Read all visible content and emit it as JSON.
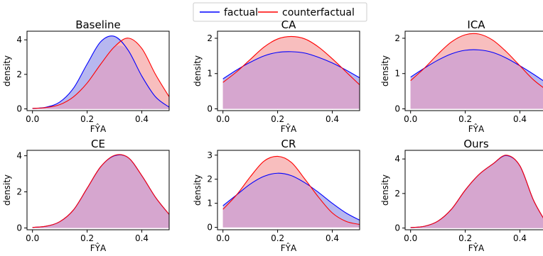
{
  "legend": {
    "items": [
      {
        "label": "factual",
        "color": "#0000ff"
      },
      {
        "label": "counterfactual",
        "color": "#ff0000"
      }
    ]
  },
  "colors": {
    "factual_line": "#0000ff",
    "counterfactual_line": "#ff0000",
    "factual_fill": "#b7b7ef",
    "counterfactual_fill": "#f8bebe",
    "overlap_fill": "#d6a6cf"
  },
  "chart_data": [
    {
      "type": "area",
      "title": "Baseline",
      "xlabel": "FŶA",
      "ylabel": "density",
      "xlim": [
        -0.02,
        0.5
      ],
      "ylim": [
        -0.1,
        4.5
      ],
      "xticks": [
        "0.0",
        "0.2",
        "0.4"
      ],
      "xtick_values": [
        0.0,
        0.2,
        0.4
      ],
      "yticks": [
        "0",
        "2",
        "4"
      ],
      "ytick_values": [
        0,
        2,
        4
      ],
      "x": [
        0.0,
        0.05,
        0.1,
        0.15,
        0.2,
        0.25,
        0.3,
        0.35,
        0.4,
        0.45,
        0.5
      ],
      "series": [
        {
          "name": "factual",
          "values": [
            0.03,
            0.1,
            0.4,
            1.2,
            2.6,
            3.9,
            4.2,
            3.4,
            1.9,
            0.7,
            0.1
          ]
        },
        {
          "name": "counterfactual",
          "values": [
            0.03,
            0.08,
            0.25,
            0.7,
            1.5,
            2.6,
            3.6,
            4.1,
            3.5,
            2.0,
            0.7
          ]
        }
      ]
    },
    {
      "type": "area",
      "title": "CA",
      "xlabel": "FŶA",
      "ylabel": "density",
      "xlim": [
        -0.02,
        0.5
      ],
      "ylim": [
        -0.05,
        2.2
      ],
      "xticks": [
        "0.0",
        "0.2",
        "0.4"
      ],
      "xtick_values": [
        0.0,
        0.2,
        0.4
      ],
      "yticks": [
        "0",
        "1",
        "2"
      ],
      "ytick_values": [
        0,
        1,
        2
      ],
      "x": [
        0.0,
        0.05,
        0.1,
        0.15,
        0.2,
        0.25,
        0.3,
        0.35,
        0.4,
        0.45,
        0.5
      ],
      "series": [
        {
          "name": "factual",
          "values": [
            0.85,
            1.1,
            1.32,
            1.5,
            1.6,
            1.62,
            1.58,
            1.46,
            1.3,
            1.1,
            0.88
          ]
        },
        {
          "name": "counterfactual",
          "values": [
            0.75,
            1.05,
            1.4,
            1.75,
            1.98,
            2.05,
            1.98,
            1.75,
            1.42,
            1.05,
            0.68
          ]
        }
      ]
    },
    {
      "type": "area",
      "title": "ICA",
      "xlabel": "FŶA",
      "ylabel": "density",
      "xlim": [
        -0.02,
        0.5
      ],
      "ylim": [
        -0.05,
        2.2
      ],
      "xticks": [
        "0.0",
        "0.2",
        "0.4"
      ],
      "xtick_values": [
        0.0,
        0.2,
        0.4
      ],
      "yticks": [
        "0",
        "1",
        "2"
      ],
      "ytick_values": [
        0,
        1,
        2
      ],
      "x": [
        0.0,
        0.05,
        0.1,
        0.15,
        0.2,
        0.25,
        0.3,
        0.35,
        0.4,
        0.45,
        0.5
      ],
      "series": [
        {
          "name": "factual",
          "values": [
            0.9,
            1.15,
            1.38,
            1.56,
            1.66,
            1.67,
            1.6,
            1.44,
            1.22,
            0.98,
            0.72
          ]
        },
        {
          "name": "counterfactual",
          "values": [
            0.8,
            1.15,
            1.55,
            1.9,
            2.1,
            2.12,
            1.95,
            1.62,
            1.22,
            0.82,
            0.52
          ]
        }
      ]
    },
    {
      "type": "area",
      "title": "CE",
      "xlabel": "FŶA",
      "ylabel": "density",
      "xlim": [
        -0.02,
        0.5
      ],
      "ylim": [
        -0.1,
        4.3
      ],
      "xticks": [
        "0.0",
        "0.2",
        "0.4"
      ],
      "xtick_values": [
        0.0,
        0.2,
        0.4
      ],
      "yticks": [
        "0",
        "2",
        "4"
      ],
      "ytick_values": [
        0,
        2,
        4
      ],
      "x": [
        0.0,
        0.05,
        0.1,
        0.15,
        0.2,
        0.25,
        0.3,
        0.35,
        0.4,
        0.45,
        0.5
      ],
      "series": [
        {
          "name": "factual",
          "values": [
            0.03,
            0.1,
            0.35,
            1.0,
            2.2,
            3.4,
            4.0,
            3.9,
            2.9,
            1.7,
            0.75
          ]
        },
        {
          "name": "counterfactual",
          "values": [
            0.03,
            0.1,
            0.35,
            1.0,
            2.2,
            3.4,
            4.02,
            3.9,
            2.9,
            1.7,
            0.75
          ]
        }
      ]
    },
    {
      "type": "area",
      "title": "CR",
      "xlabel": "FŶA",
      "ylabel": "density",
      "xlim": [
        -0.02,
        0.5
      ],
      "ylim": [
        -0.1,
        3.2
      ],
      "xticks": [
        "0.0",
        "0.2",
        "0.4"
      ],
      "xtick_values": [
        0.0,
        0.2,
        0.4
      ],
      "yticks": [
        "0",
        "1",
        "2",
        "3"
      ],
      "ytick_values": [
        0,
        1,
        2,
        3
      ],
      "x": [
        0.0,
        0.05,
        0.1,
        0.15,
        0.2,
        0.25,
        0.3,
        0.35,
        0.4,
        0.45,
        0.5
      ],
      "series": [
        {
          "name": "factual",
          "values": [
            0.9,
            1.35,
            1.8,
            2.12,
            2.25,
            2.15,
            1.85,
            1.45,
            1.0,
            0.6,
            0.3
          ]
        },
        {
          "name": "counterfactual",
          "values": [
            0.75,
            1.35,
            2.1,
            2.75,
            2.95,
            2.7,
            2.0,
            1.25,
            0.6,
            0.25,
            0.12
          ]
        }
      ]
    },
    {
      "type": "area",
      "title": "Ours",
      "xlabel": "FŶA",
      "ylabel": "density",
      "xlim": [
        -0.02,
        0.5
      ],
      "ylim": [
        -0.1,
        4.5
      ],
      "xticks": [
        "0.0",
        "0.2",
        "0.4"
      ],
      "xtick_values": [
        0.0,
        0.2,
        0.4
      ],
      "yticks": [
        "0",
        "2",
        "4"
      ],
      "ytick_values": [
        0,
        2,
        4
      ],
      "x": [
        0.0,
        0.05,
        0.1,
        0.15,
        0.2,
        0.25,
        0.3,
        0.35,
        0.4,
        0.45,
        0.5
      ],
      "series": [
        {
          "name": "factual",
          "values": [
            0.03,
            0.1,
            0.4,
            1.1,
            2.2,
            3.1,
            3.7,
            4.2,
            3.6,
            1.6,
            0.2
          ]
        },
        {
          "name": "counterfactual",
          "values": [
            0.03,
            0.1,
            0.4,
            1.1,
            2.2,
            3.1,
            3.7,
            4.22,
            3.6,
            1.6,
            0.2
          ]
        }
      ]
    }
  ]
}
